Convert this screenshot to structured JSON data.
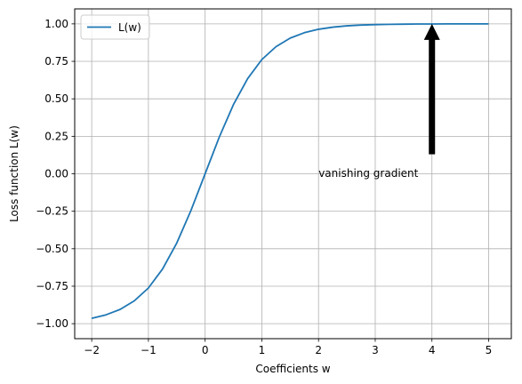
{
  "chart_data": {
    "type": "line",
    "xlabel": "Coefficients w",
    "ylabel": "Loss function L(w)",
    "xlim": [
      -2.3,
      5.4
    ],
    "ylim": [
      -1.1,
      1.1
    ],
    "xticks": [
      -2,
      -1,
      0,
      1,
      2,
      3,
      4,
      5
    ],
    "yticks": [
      -1.0,
      -0.75,
      -0.5,
      -0.25,
      0.0,
      0.25,
      0.5,
      0.75,
      1.0
    ],
    "xtick_labels": [
      "−2",
      "−1",
      "0",
      "1",
      "2",
      "3",
      "4",
      "5"
    ],
    "ytick_labels": [
      "−1.00",
      "−0.75",
      "−0.50",
      "−0.25",
      "0.00",
      "0.25",
      "0.50",
      "0.75",
      "1.00"
    ],
    "grid": true,
    "legend_position": "top-left",
    "series": [
      {
        "name": "L(w)",
        "color": "#1f77b4",
        "x": [
          -2.0,
          -1.75,
          -1.5,
          -1.25,
          -1.0,
          -0.75,
          -0.5,
          -0.25,
          0.0,
          0.25,
          0.5,
          0.75,
          1.0,
          1.25,
          1.5,
          1.75,
          2.0,
          2.25,
          2.5,
          2.75,
          3.0,
          3.25,
          3.5,
          3.75,
          4.0,
          4.25,
          4.5,
          4.75,
          5.0
        ],
        "y": [
          -0.964,
          -0.941,
          -0.905,
          -0.848,
          -0.762,
          -0.635,
          -0.462,
          -0.245,
          0.0,
          0.245,
          0.462,
          0.635,
          0.762,
          0.848,
          0.905,
          0.941,
          0.964,
          0.978,
          0.987,
          0.992,
          0.995,
          0.997,
          0.998,
          0.999,
          0.999,
          1.0,
          1.0,
          1.0,
          1.0
        ]
      }
    ],
    "annotations": [
      {
        "text": "vanishing gradient",
        "text_x": 2.0,
        "text_y": 0.0,
        "arrow_from_x": 4.0,
        "arrow_from_y": 0.13,
        "arrow_to_x": 4.0,
        "arrow_to_y": 1.0,
        "arrow_color": "#000000"
      }
    ]
  }
}
